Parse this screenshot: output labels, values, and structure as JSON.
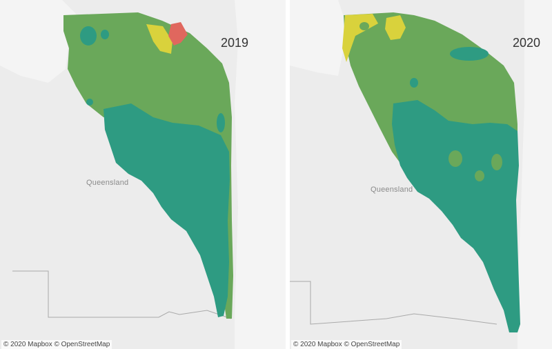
{
  "colors": {
    "land": "#e8e8e8",
    "water": "#f4f4f4",
    "border_line": "#a8a8a8",
    "class_light_green": "#6aa85a",
    "class_teal": "#2e9b82",
    "class_yellow": "#d9d23c",
    "class_red": "#e0675e"
  },
  "panels": [
    {
      "year": "2019",
      "region_label": "Queensland",
      "attribution": "© 2020 Mapbox © OpenStreetMap"
    },
    {
      "year": "2020",
      "region_label": "Queensland",
      "attribution": "© 2020 Mapbox © OpenStreetMap"
    }
  ]
}
